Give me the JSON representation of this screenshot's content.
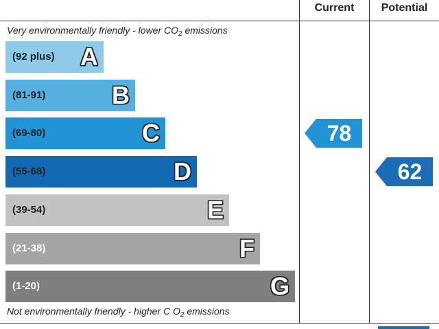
{
  "columns": {
    "current": "Current",
    "potential": "Potential"
  },
  "captions": {
    "top": {
      "text": "Very environmentally friendly - lower C",
      "sup": "O",
      "sub": "2",
      "tail": " emissions"
    },
    "bottom": {
      "text": "Not environmentally friendly - higher C ",
      "sup": "O",
      "sub": "2",
      "tail": " emissions"
    }
  },
  "chart_data": {
    "type": "bar",
    "bands": [
      {
        "letter": "A",
        "range": "(92 plus)",
        "color": "#8ecbeb",
        "text_color": "#222222",
        "relative_length": 0.34
      },
      {
        "letter": "B",
        "range": "(81-91)",
        "color": "#55b0df",
        "text_color": "#222222",
        "relative_length": 0.447
      },
      {
        "letter": "C",
        "range": "(69-80)",
        "color": "#2293d4",
        "text_color": "#222222",
        "relative_length": 0.553
      },
      {
        "letter": "D",
        "range": "(55-68)",
        "color": "#1469b3",
        "text_color": "#222222",
        "relative_length": 0.66
      },
      {
        "letter": "E",
        "range": "(39-54)",
        "color": "#c2c2c2",
        "text_color": "#222222",
        "relative_length": 0.772
      },
      {
        "letter": "F",
        "range": "(21-38)",
        "color": "#a4a4a4",
        "text_color": "#ffffff",
        "relative_length": 0.88
      },
      {
        "letter": "G",
        "range": "(1-20)",
        "color": "#7f7f7f",
        "text_color": "#ffffff",
        "relative_length": 1.0
      }
    ],
    "current": {
      "value": 78,
      "band": "C",
      "color": "#2293d4"
    },
    "potential": {
      "value": 62,
      "band": "D",
      "color": "#1b6db8"
    }
  }
}
